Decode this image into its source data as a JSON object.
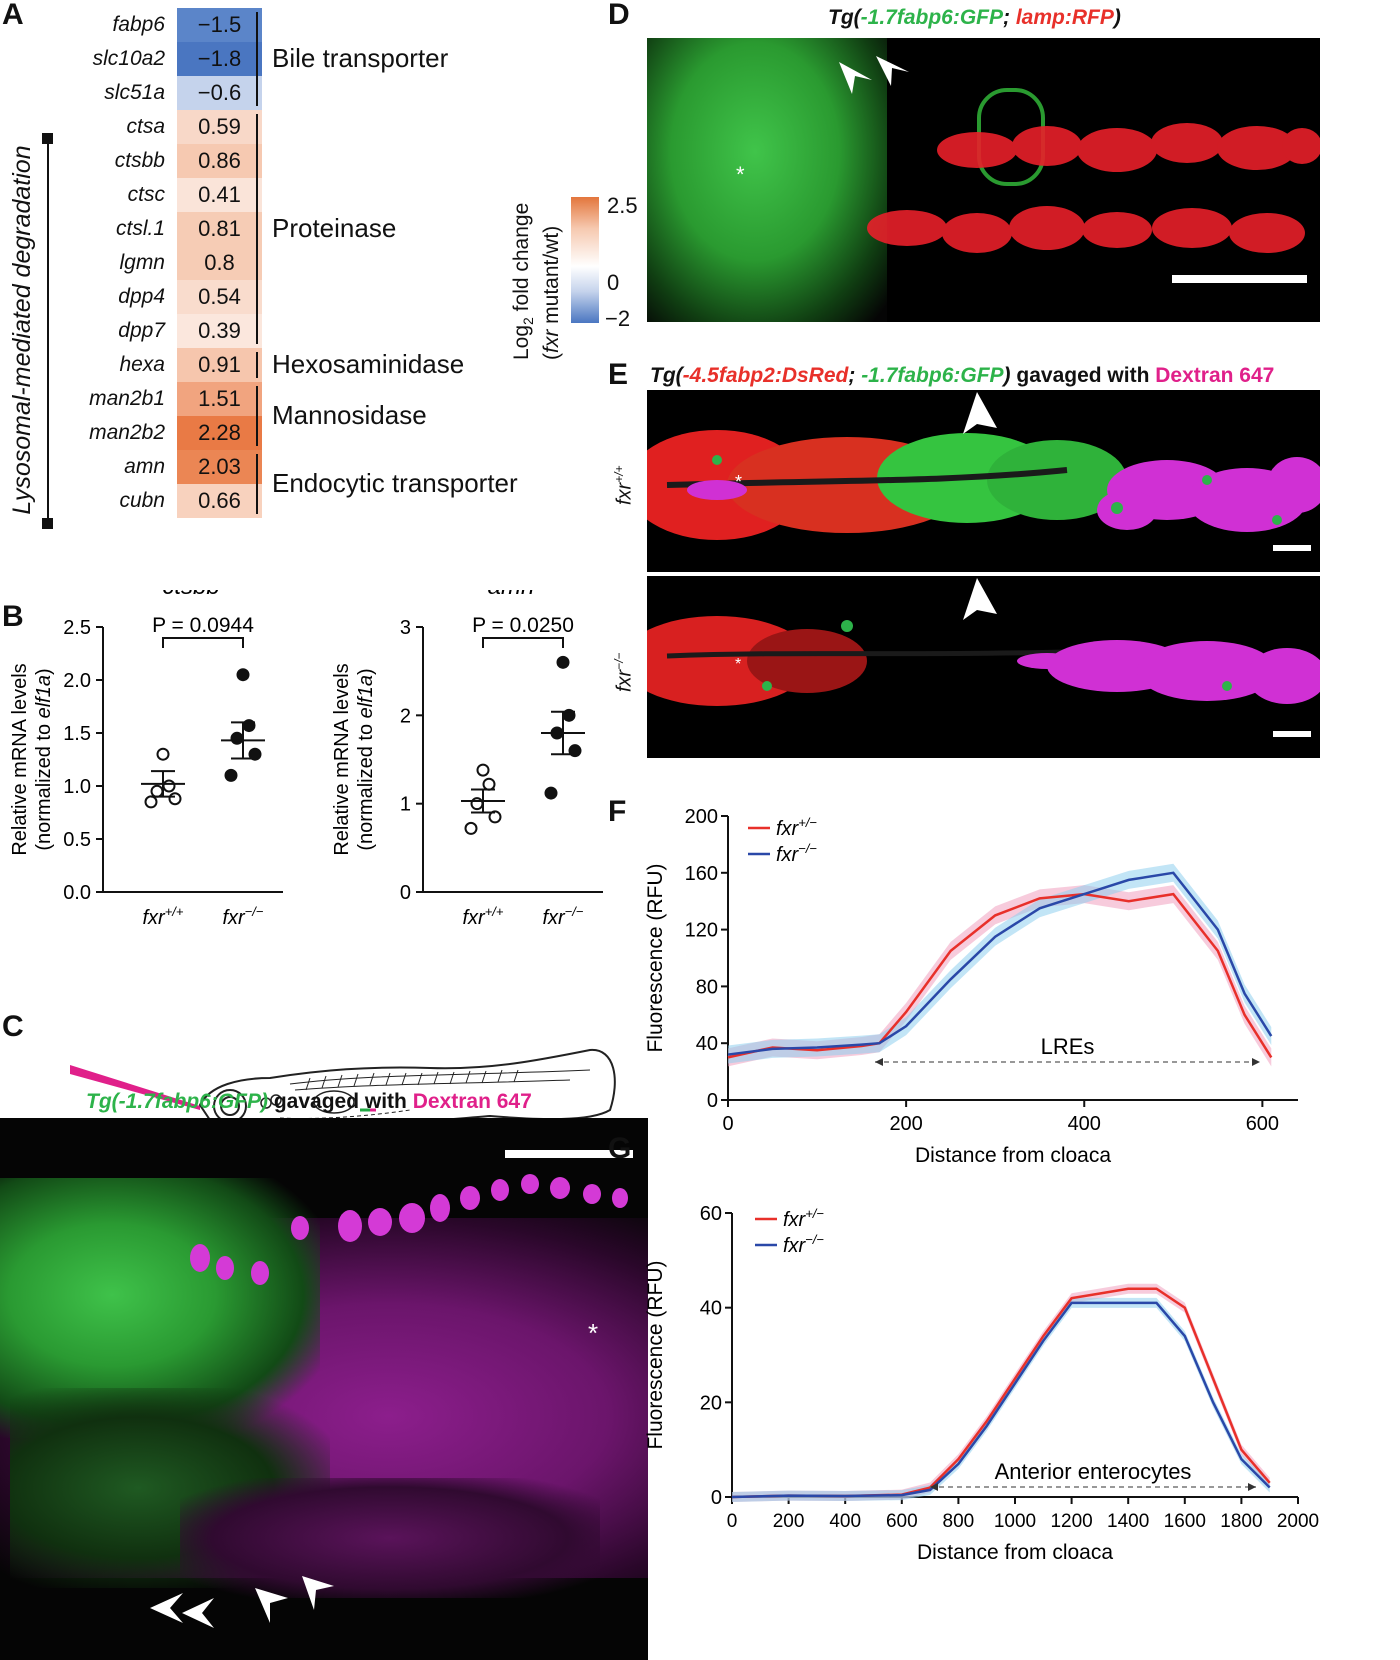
{
  "panels": {
    "A": "A",
    "B": "B",
    "C": "C",
    "D": "D",
    "E": "E",
    "F": "F",
    "G": "G"
  },
  "heatmap": {
    "side_label": "Lysosomal-mediated degradation",
    "rows": [
      {
        "gene": "fabp6",
        "value": "−1.5",
        "color": "#5b85c9"
      },
      {
        "gene": "slc10a2",
        "value": "−1.8",
        "color": "#4a76c1"
      },
      {
        "gene": "slc51a",
        "value": "−0.6",
        "color": "#c5d3ec"
      },
      {
        "gene": "ctsa",
        "value": "0.59",
        "color": "#f8d8c8"
      },
      {
        "gene": "ctsbb",
        "value": "0.86",
        "color": "#f6c9b1"
      },
      {
        "gene": "ctsc",
        "value": "0.41",
        "color": "#fae4d9"
      },
      {
        "gene": "ctsl.1",
        "value": "0.81",
        "color": "#f6ccb5"
      },
      {
        "gene": "lgmn",
        "value": "0.8",
        "color": "#f6ccb5"
      },
      {
        "gene": "dpp4",
        "value": "0.54",
        "color": "#f9dccd"
      },
      {
        "gene": "dpp7",
        "value": "0.39",
        "color": "#fbe7dd"
      },
      {
        "gene": "hexa",
        "value": "0.91",
        "color": "#f6c6ad"
      },
      {
        "gene": "man2b1",
        "value": "1.51",
        "color": "#f1a47f"
      },
      {
        "gene": "man2b2",
        "value": "2.28",
        "color": "#e97a45"
      },
      {
        "gene": "amn",
        "value": "2.03",
        "color": "#eb8654"
      },
      {
        "gene": "cubn",
        "value": "0.66",
        "color": "#f8d2be"
      }
    ],
    "groups": [
      "Bile transporter",
      "Proteinase",
      "Hexosaminidase",
      "Mannosidase",
      "Endocytic transporter"
    ],
    "colorbar": {
      "title1": "Log",
      "sub": "2",
      "title1b": " fold change",
      "title2a": "(",
      "title2b": "fxr",
      "title2c": " mutant/wt)",
      "max": "2.5",
      "mid": "0",
      "min": "−2"
    }
  },
  "panel_b": {
    "ylabel1": "Relative mRNA levels",
    "ylabel2a": "(normalized to ",
    "ylabel2b": "elf1a",
    "ylabel2c": ")",
    "charts": [
      {
        "title": "ctsbb",
        "p": "P = 0.0944",
        "ticks": [
          "0.0",
          "0.5",
          "1.0",
          "1.5",
          "2.0",
          "2.5"
        ]
      },
      {
        "title": "amn",
        "p": "P = 0.0250",
        "ticks": [
          "0",
          "1",
          "2",
          "3"
        ]
      }
    ],
    "xcat1": "fxr",
    "xsup1": "+/+",
    "xcat2": "fxr",
    "xsup2": "−/−"
  },
  "panel_c": {
    "t1": "Tg(-1.7fabp6:GFP)",
    "t2": " gavaged with ",
    "t3": "Dextran 647",
    "asterisk": "*"
  },
  "panel_d": {
    "t0": "Tg(",
    "t1": "-1.7fabp6:GFP",
    "t2": "; ",
    "t3": "lamp:RFP",
    "t4": ")",
    "asterisk": "*"
  },
  "panel_e": {
    "t0": "Tg(",
    "t1": "-4.5fabp2:DsRed",
    "t2": "; ",
    "t3": "-1.7fabp6:GFP",
    "t4": ")",
    "t5": " gavaged with ",
    "t6": "Dextran 647",
    "row1": "fxr",
    "row1sup": "+/+",
    "row2": "fxr",
    "row2sup": "−/−",
    "asterisk": "*"
  },
  "chart_data": [
    {
      "type": "scatter",
      "title": "ctsbb",
      "ylabel": "Relative mRNA levels (normalized to elf1a)",
      "ylim": [
        0,
        2.5
      ],
      "categories": [
        "fxr+/+",
        "fxr−/−"
      ],
      "series": [
        {
          "name": "fxr+/+",
          "values": [
            0.85,
            0.88,
            0.95,
            1.0,
            1.3
          ],
          "mean": 1.02,
          "sem": 0.12
        },
        {
          "name": "fxr−/−",
          "values": [
            1.1,
            1.3,
            1.45,
            1.57,
            2.05
          ],
          "mean": 1.43,
          "sem": 0.17
        }
      ],
      "annotation": "P = 0.0944"
    },
    {
      "type": "scatter",
      "title": "amn",
      "ylabel": "Relative mRNA levels (normalized to elf1a)",
      "ylim": [
        0,
        3
      ],
      "categories": [
        "fxr+/+",
        "fxr−/−"
      ],
      "series": [
        {
          "name": "fxr+/+",
          "values": [
            0.72,
            0.85,
            1.0,
            1.22,
            1.38
          ],
          "mean": 1.03,
          "sem": 0.13
        },
        {
          "name": "fxr−/−",
          "values": [
            1.12,
            1.6,
            1.8,
            2.0,
            2.6
          ],
          "mean": 1.8,
          "sem": 0.24
        }
      ],
      "annotation": "P = 0.0250"
    },
    {
      "type": "line",
      "xlabel": "Distance from cloaca",
      "ylabel": "Fluorescence (RFU)",
      "xlim": [
        0,
        640
      ],
      "ylim": [
        0,
        200
      ],
      "xticks": [
        "0",
        "200",
        "400",
        "600"
      ],
      "yticks": [
        "0",
        "40",
        "80",
        "120",
        "160",
        "200"
      ],
      "x": [
        0,
        50,
        100,
        150,
        170,
        200,
        250,
        300,
        350,
        400,
        450,
        500,
        550,
        580,
        610
      ],
      "series": [
        {
          "name": "fxr+/−",
          "color": "#e8302a",
          "values": [
            30,
            37,
            35,
            38,
            40,
            62,
            105,
            130,
            142,
            145,
            140,
            145,
            105,
            60,
            30
          ]
        },
        {
          "name": "fxr−/−",
          "color": "#2a48a8",
          "values": [
            32,
            36,
            37,
            39,
            40,
            52,
            85,
            115,
            135,
            145,
            155,
            160,
            120,
            75,
            45
          ]
        }
      ],
      "annotation": "LREs",
      "legend": "top-left"
    },
    {
      "type": "area",
      "xlabel": "Distance from cloaca",
      "ylabel": "Fluorescence (RFU)",
      "xlim": [
        0,
        2000
      ],
      "ylim": [
        0,
        60
      ],
      "xticks": [
        "0",
        "200",
        "400",
        "600",
        "800",
        "1000",
        "1200",
        "1400",
        "1600",
        "1800",
        "2000"
      ],
      "yticks": [
        "0",
        "20",
        "40",
        "60"
      ],
      "x": [
        0,
        200,
        400,
        600,
        700,
        800,
        900,
        1000,
        1100,
        1200,
        1300,
        1400,
        1500,
        1600,
        1700,
        1800,
        1900
      ],
      "series": [
        {
          "name": "fxr+/−",
          "color": "#e8302a",
          "values": [
            0,
            0.3,
            0.2,
            0.5,
            2,
            8,
            16,
            25,
            34,
            42,
            43,
            44,
            44,
            40,
            25,
            10,
            3
          ]
        },
        {
          "name": "fxr−/−",
          "color": "#2a48a8",
          "values": [
            0,
            0.3,
            0.2,
            0.4,
            1.5,
            7,
            15,
            24,
            33,
            41,
            41,
            41,
            41,
            34,
            20,
            8,
            2
          ]
        }
      ],
      "annotation": "Anterior enterocytes",
      "legend": "top-left"
    }
  ],
  "legend_labels": {
    "a": "fxr",
    "asup": "+/−",
    "b": "fxr",
    "bsup": "−/−"
  }
}
